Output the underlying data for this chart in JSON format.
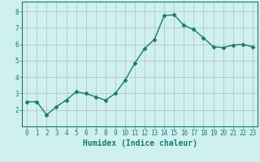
{
  "x": [
    0,
    1,
    2,
    3,
    4,
    5,
    6,
    7,
    8,
    9,
    10,
    11,
    12,
    13,
    14,
    15,
    16,
    17,
    18,
    19,
    20,
    21,
    22,
    23
  ],
  "y": [
    2.5,
    2.5,
    1.7,
    2.2,
    2.6,
    3.1,
    3.0,
    2.8,
    2.6,
    3.0,
    3.8,
    4.85,
    5.75,
    6.3,
    7.75,
    7.8,
    7.15,
    6.9,
    6.4,
    5.85,
    5.8,
    5.95,
    6.0,
    5.85
  ],
  "line_color": "#1a7a6e",
  "marker": "D",
  "marker_size": 2.5,
  "bg_color": "#cff0f0",
  "grid_color": "#b0b0b0",
  "xlabel": "Humidex (Indice chaleur)",
  "xlabel_fontsize": 7,
  "xlim": [
    -0.5,
    23.5
  ],
  "ylim": [
    1.0,
    8.6
  ],
  "yticks": [
    2,
    3,
    4,
    5,
    6,
    7,
    8
  ],
  "xticks": [
    0,
    1,
    2,
    3,
    4,
    5,
    6,
    7,
    8,
    9,
    10,
    11,
    12,
    13,
    14,
    15,
    16,
    17,
    18,
    19,
    20,
    21,
    22,
    23
  ],
  "tick_color": "#1a7a6e",
  "tick_fontsize": 5.5,
  "line_width": 1.0,
  "spine_color": "#1a7a6e"
}
